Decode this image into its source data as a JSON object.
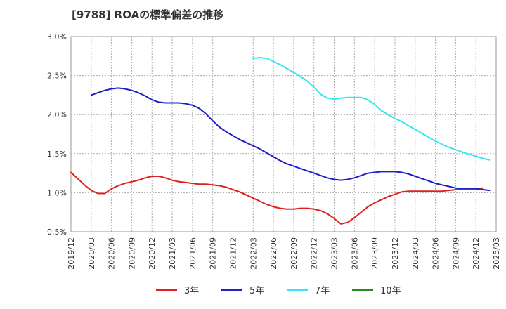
{
  "chart_data": {
    "type": "line",
    "title": "[9788]  ROAの標準偏差の推移",
    "xlabel": "",
    "ylabel": "",
    "ylim": [
      0.5,
      3.0
    ],
    "yticks": [
      0.5,
      1.0,
      1.5,
      2.0,
      2.5,
      3.0
    ],
    "ytick_labels": [
      "0.5%",
      "1.0%",
      "1.5%",
      "2.0%",
      "2.5%",
      "3.0%"
    ],
    "x_ticks": [
      "2019/12",
      "2020/03",
      "2020/06",
      "2020/09",
      "2020/12",
      "2021/03",
      "2021/06",
      "2021/09",
      "2021/12",
      "2022/03",
      "2022/06",
      "2022/09",
      "2022/12",
      "2023/03",
      "2023/06",
      "2023/09",
      "2023/12",
      "2024/03",
      "2024/06",
      "2024/09",
      "2024/12",
      "2025/03"
    ],
    "grid": true,
    "legend_position": "bottom",
    "series": [
      {
        "name": "3年",
        "color": "#e02020",
        "start": "2019/12",
        "values": [
          1.26,
          1.18,
          1.1,
          1.03,
          0.99,
          0.99,
          1.05,
          1.09,
          1.12,
          1.14,
          1.16,
          1.19,
          1.21,
          1.21,
          1.19,
          1.16,
          1.14,
          1.13,
          1.12,
          1.11,
          1.11,
          1.1,
          1.09,
          1.07,
          1.04,
          1.01,
          0.97,
          0.93,
          0.89,
          0.85,
          0.82,
          0.8,
          0.79,
          0.79,
          0.8,
          0.8,
          0.79,
          0.77,
          0.73,
          0.67,
          0.6,
          0.62,
          0.68,
          0.75,
          0.82,
          0.87,
          0.91,
          0.95,
          0.98,
          1.01,
          1.02,
          1.02,
          1.02,
          1.02,
          1.02,
          1.02,
          1.03,
          1.04,
          1.05,
          1.05,
          1.05,
          1.06
        ]
      },
      {
        "name": "5年",
        "color": "#1f1fc8",
        "start": "2020/03",
        "values": [
          2.25,
          2.28,
          2.31,
          2.33,
          2.34,
          2.33,
          2.31,
          2.28,
          2.24,
          2.19,
          2.16,
          2.15,
          2.15,
          2.15,
          2.14,
          2.12,
          2.08,
          2.01,
          1.92,
          1.84,
          1.78,
          1.73,
          1.68,
          1.64,
          1.6,
          1.56,
          1.51,
          1.46,
          1.41,
          1.37,
          1.34,
          1.31,
          1.28,
          1.25,
          1.22,
          1.19,
          1.17,
          1.16,
          1.17,
          1.19,
          1.22,
          1.25,
          1.26,
          1.27,
          1.27,
          1.27,
          1.26,
          1.24,
          1.21,
          1.18,
          1.15,
          1.12,
          1.1,
          1.08,
          1.06,
          1.05,
          1.05,
          1.05,
          1.04,
          1.03
        ]
      },
      {
        "name": "7年",
        "color": "#33e6f0",
        "start": "2022/03",
        "values": [
          2.72,
          2.73,
          2.72,
          2.68,
          2.64,
          2.59,
          2.54,
          2.49,
          2.43,
          2.35,
          2.26,
          2.21,
          2.2,
          2.21,
          2.22,
          2.22,
          2.22,
          2.19,
          2.13,
          2.05,
          2.0,
          1.95,
          1.91,
          1.86,
          1.81,
          1.76,
          1.71,
          1.66,
          1.62,
          1.58,
          1.55,
          1.52,
          1.49,
          1.47,
          1.44,
          1.42
        ]
      },
      {
        "name": "10年",
        "color": "#228b22",
        "start": "",
        "values": []
      }
    ]
  }
}
